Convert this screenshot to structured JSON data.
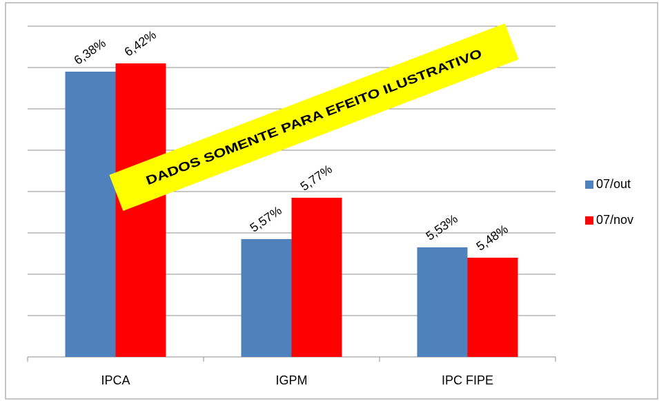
{
  "chart_data": {
    "type": "bar",
    "categories": [
      "IPCA",
      "IGPM",
      "IPC FIPE"
    ],
    "series": [
      {
        "name": "07/out",
        "color": "#4f81bd",
        "values": [
          6.38,
          5.57,
          5.53
        ],
        "value_labels": [
          "6,38%",
          "5,57%",
          "5,53%"
        ]
      },
      {
        "name": "07/nov",
        "color": "#ff0000",
        "values": [
          6.42,
          5.77,
          5.48
        ],
        "value_labels": [
          "6,42%",
          "5,77%",
          "5,48%"
        ]
      }
    ],
    "ylim": [
      5,
      6.6
    ],
    "yticks": [
      5,
      5.2,
      5.4,
      5.6,
      5.8,
      6,
      6.2,
      6.4,
      6.6
    ],
    "grid": true,
    "legend": "right",
    "annotation": "DADOS SOMENTE PARA EFEITO ILUSTRATIVO"
  }
}
